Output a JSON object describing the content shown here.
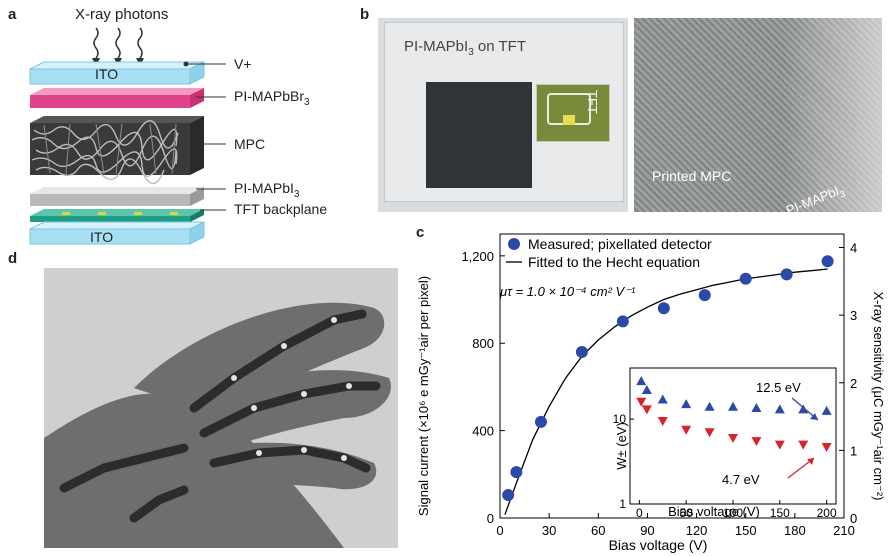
{
  "panel_a": {
    "letter": "a",
    "xray_label": "X-ray photons",
    "layers": {
      "ito_top": "ITO",
      "vplus": "V+",
      "pi_mapbbr3": "PI-MAPbBr",
      "pi_mapbbr3_sub": "3",
      "mpc": "MPC",
      "pi_mapbi3": "PI-MAPbI",
      "pi_mapbi3_sub": "3",
      "tft": "TFT backplane",
      "ito_bottom": "ITO"
    },
    "colors": {
      "ito": "#a9dff2",
      "pink": "#e2418b",
      "tft": "#1f9e86",
      "gray": "#b9b9b9"
    }
  },
  "panel_b": {
    "letter": "b",
    "left_label_pre": "PI-MAPbI",
    "left_label_sub": "3",
    "left_label_post": " on TFT",
    "tft_label": "TFT",
    "right_label": "Printed MPC",
    "edge_label_pre": "PI-MAPbI",
    "edge_label_sub": "3"
  },
  "panel_c": {
    "letter": "c",
    "legend_measured": "Measured; pixellated detector",
    "legend_fit": "Fitted to the Hecht equation",
    "mutau": "μτ = 1.0 × 10⁻⁴ cm² V⁻¹",
    "inset_note_high": "12.5 eV",
    "inset_note_low": "4.7 eV"
  },
  "panel_d": {
    "letter": "d"
  },
  "chart_data": [
    {
      "type": "scatter",
      "title": "",
      "xlabel": "Bias voltage (V)",
      "ylabel": "Signal current (×10⁶ e mGy⁻¹air per pixel)",
      "y2label": "X-ray sensitivity (μC mGy⁻¹air cm⁻²)",
      "xlim": [
        0,
        210
      ],
      "ylim": [
        0,
        1300
      ],
      "y2lim": [
        0,
        4.2
      ],
      "xticks": [
        0,
        30,
        60,
        90,
        120,
        150,
        180,
        210
      ],
      "yticks": [
        0,
        400,
        800,
        1200
      ],
      "ytick_labels": [
        "0",
        "400",
        "800",
        "1,200"
      ],
      "y2ticks": [
        0,
        1,
        2,
        3,
        4
      ],
      "legend_position": "top-left",
      "series": [
        {
          "name": "Measured; pixellated detector",
          "marker": "circle",
          "color": "#2b4aa8",
          "x": [
            5,
            10,
            25,
            50,
            75,
            100,
            125,
            150,
            175,
            200
          ],
          "y": [
            105,
            210,
            440,
            760,
            900,
            960,
            1020,
            1095,
            1115,
            1175
          ]
        },
        {
          "name": "Fitted to the Hecht equation",
          "line": true,
          "color": "#000000",
          "x": [
            3,
            10,
            20,
            30,
            40,
            50,
            60,
            70,
            80,
            90,
            100,
            110,
            120,
            130,
            140,
            150,
            160,
            170,
            180,
            190,
            200
          ],
          "y": [
            15,
            160,
            360,
            510,
            640,
            740,
            815,
            875,
            925,
            965,
            1000,
            1025,
            1045,
            1065,
            1080,
            1095,
            1105,
            1115,
            1125,
            1132,
            1140
          ]
        }
      ]
    },
    {
      "type": "scatter",
      "title": "",
      "xlabel": "Bias voltage (V)",
      "ylabel": "W± (eV)",
      "xlim": [
        -10,
        210
      ],
      "ylim_log": [
        1,
        40
      ],
      "xticks": [
        0,
        50,
        100,
        150,
        200
      ],
      "yticks": [
        1,
        10
      ],
      "series": [
        {
          "marker": "triangle-up",
          "color": "#2b4aa8",
          "x": [
            2,
            8,
            25,
            50,
            75,
            100,
            125,
            150,
            175,
            200
          ],
          "y": [
            28,
            22,
            17,
            15,
            14,
            14,
            13.5,
            13,
            13,
            12.5
          ]
        },
        {
          "marker": "triangle-down",
          "color": "#d8232a",
          "x": [
            2,
            8,
            25,
            50,
            75,
            100,
            125,
            150,
            175,
            200
          ],
          "y": [
            16,
            13,
            9.5,
            7.5,
            7,
            6,
            5.5,
            5,
            5,
            4.7
          ]
        }
      ]
    }
  ]
}
